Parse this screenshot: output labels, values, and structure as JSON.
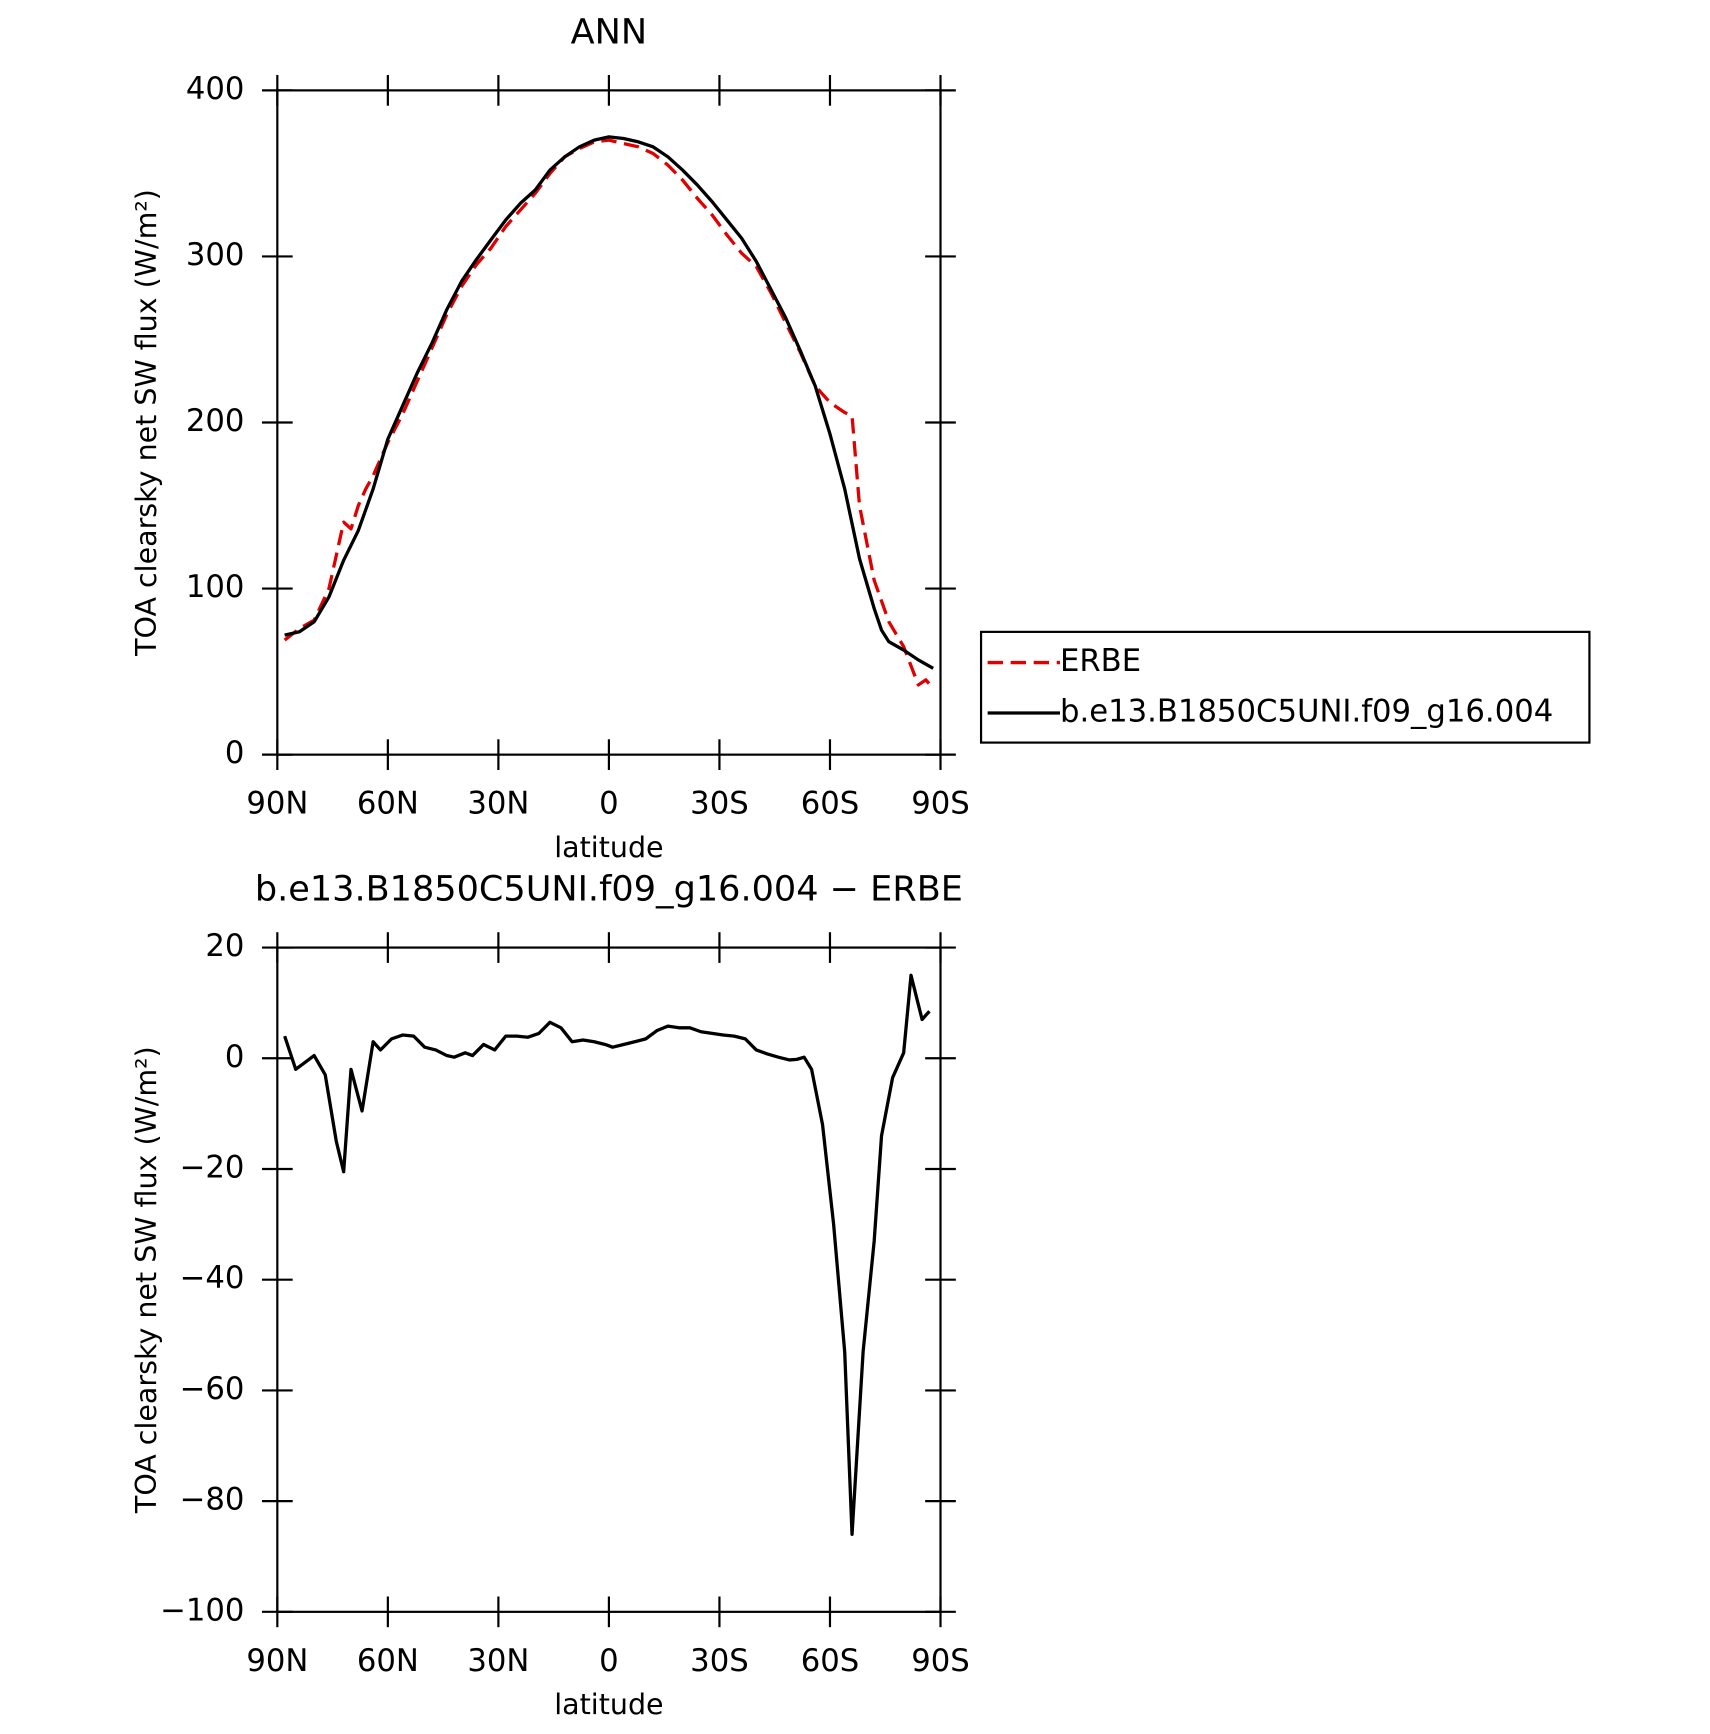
{
  "chart_data": [
    {
      "type": "line",
      "title": "ANN",
      "xlabel": "latitude",
      "ylabel": "TOA clearsky net SW flux (W/m²)",
      "xlim": [
        90,
        -90
      ],
      "xticks": [
        {
          "value": 90,
          "label": "90N"
        },
        {
          "value": 60,
          "label": "60N"
        },
        {
          "value": 30,
          "label": "30N"
        },
        0,
        {
          "value": -30,
          "label": "30S"
        },
        {
          "value": -60,
          "label": "60S"
        },
        {
          "value": -90,
          "label": "90S"
        }
      ],
      "ylim": [
        0,
        400
      ],
      "yticks": [
        0,
        100,
        200,
        300,
        400
      ],
      "legend": "right",
      "series": [
        {
          "name": "ERBE",
          "color": "#e00000",
          "dashed": true,
          "x": [
            88,
            84,
            80,
            76,
            72,
            70,
            68,
            66,
            64,
            60,
            56,
            52,
            48,
            44,
            40,
            36,
            32,
            28,
            24,
            20,
            16,
            12,
            8,
            4,
            0,
            -4,
            -8,
            -12,
            -16,
            -20,
            -24,
            -28,
            -32,
            -36,
            -40,
            -44,
            -48,
            -52,
            -56,
            -60,
            -64,
            -66,
            -68,
            -72,
            -76,
            -80,
            -84,
            -86,
            -88
          ],
          "values": [
            69,
            76,
            81,
            100,
            140,
            136,
            150,
            160,
            168,
            188,
            205,
            225,
            245,
            265,
            282,
            295,
            305,
            318,
            328,
            338,
            350,
            360,
            365,
            369,
            370,
            368,
            366,
            362,
            355,
            346,
            335,
            325,
            313,
            302,
            294,
            278,
            260,
            242,
            222,
            212,
            206,
            204,
            150,
            105,
            80,
            65,
            42,
            45,
            40
          ]
        },
        {
          "name": "b.e13.B1850C5UNI.f09_g16.004",
          "color": "#000000",
          "dashed": false,
          "x": [
            88,
            84,
            80,
            76,
            72,
            68,
            64,
            60,
            56,
            52,
            48,
            44,
            40,
            36,
            32,
            28,
            24,
            20,
            16,
            12,
            8,
            4,
            0,
            -4,
            -8,
            -12,
            -16,
            -20,
            -24,
            -28,
            -32,
            -36,
            -40,
            -44,
            -48,
            -52,
            -56,
            -60,
            -64,
            -68,
            -72,
            -74,
            -76,
            -80,
            -84,
            -88
          ],
          "values": [
            72,
            74,
            80,
            95,
            117,
            135,
            160,
            190,
            210,
            230,
            248,
            268,
            285,
            298,
            310,
            322,
            332,
            340,
            352,
            360,
            366,
            370,
            372,
            371,
            369,
            366,
            360,
            352,
            343,
            333,
            322,
            311,
            297,
            280,
            263,
            243,
            222,
            193,
            160,
            118,
            88,
            75,
            68,
            63,
            57,
            52
          ]
        }
      ]
    },
    {
      "type": "line",
      "title": "b.e13.B1850C5UNI.f09_g16.004 − ERBE",
      "xlabel": "latitude",
      "ylabel": "TOA clearsky net SW flux (W/m²)",
      "xlim": [
        90,
        -90
      ],
      "xticks": [
        {
          "value": 90,
          "label": "90N"
        },
        {
          "value": 60,
          "label": "60N"
        },
        {
          "value": 30,
          "label": "30N"
        },
        0,
        {
          "value": -30,
          "label": "30S"
        },
        {
          "value": -60,
          "label": "60S"
        },
        {
          "value": -90,
          "label": "90S"
        }
      ],
      "ylim": [
        -100,
        20
      ],
      "yticks": [
        {
          "value": -100,
          "label": "−100"
        },
        {
          "value": -80,
          "label": "−80"
        },
        {
          "value": -60,
          "label": "−60"
        },
        {
          "value": -40,
          "label": "−40"
        },
        {
          "value": -20,
          "label": "−20"
        },
        0,
        20
      ],
      "series": [
        {
          "color": "#000000",
          "dashed": false,
          "x": [
            88,
            85,
            80,
            77,
            74,
            72,
            70,
            67,
            64,
            62,
            59,
            56,
            53,
            50,
            47,
            44,
            42,
            39,
            37,
            34,
            31,
            28,
            25,
            22,
            19,
            16,
            13,
            10,
            7,
            4,
            1,
            -1,
            -4,
            -7,
            -10,
            -13,
            -16,
            -19,
            -22,
            -25,
            -28,
            -31,
            -34,
            -37,
            -40,
            -43,
            -46,
            -49,
            -51,
            -53,
            -55,
            -58,
            -61,
            -64,
            -66,
            -69,
            -72,
            -74,
            -77,
            -80,
            -82,
            -85,
            -87
          ],
          "values": [
            4,
            -2,
            0.5,
            -3,
            -15,
            -20.5,
            -2,
            -9.5,
            3,
            1.5,
            3.5,
            4.2,
            4,
            2,
            1.5,
            0.5,
            0.2,
            1,
            0.5,
            2.5,
            1.5,
            4,
            4,
            3.8,
            4.5,
            6.5,
            5.5,
            3,
            3.3,
            3,
            2.5,
            2,
            2.5,
            3,
            3.5,
            5,
            5.8,
            5.5,
            5.5,
            4.8,
            4.5,
            4.2,
            4,
            3.5,
            1.5,
            0.8,
            0.2,
            -0.3,
            -0.2,
            0.2,
            -2,
            -12,
            -30,
            -53,
            -86,
            -53,
            -33,
            -14,
            -3.5,
            1,
            15,
            7,
            8.5
          ]
        }
      ]
    }
  ]
}
